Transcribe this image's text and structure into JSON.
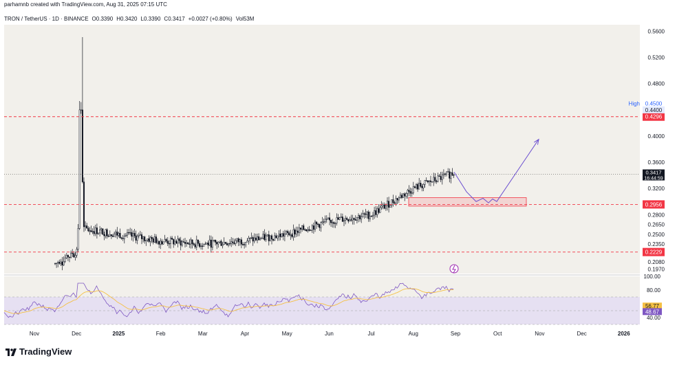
{
  "header": {
    "credit": "parhamnb created with TradingView.com, Aug 31, 2025 07:15 UTC",
    "symbol": "TRON / TetherUS · 1D · BINANCE",
    "open": "O0.3390",
    "high": "H0.3420",
    "low": "L0.3390",
    "close": "C0.3417",
    "change": "+0.0027 (+0.80%)",
    "volume": "Vol53M"
  },
  "footer": {
    "brand": "TradingView"
  },
  "colors": {
    "background": "#f2f0eb",
    "up": "#131722",
    "down": "#131722",
    "level_line": "#f23645",
    "projection": "#6b4fd0",
    "rsi_line": "#7e57c2",
    "rsi_ma": "#f5c043",
    "rsi_band": "#e6e0f2"
  },
  "chart_data": [
    {
      "type": "candlestick",
      "pane": "price",
      "ylim": [
        0.19,
        0.57
      ],
      "y_ticks": [
        "0.5600",
        "0.5200",
        "0.4800",
        "0.4400",
        "0.4000",
        "0.3600",
        "0.3200",
        "0.2800",
        "0.2650",
        "0.2500",
        "0.2350",
        "0.2080",
        "0.1970"
      ],
      "x_ticks": [
        "Nov",
        "Dec",
        "2025",
        "Feb",
        "Mar",
        "Apr",
        "May",
        "Jun",
        "Jul",
        "Aug",
        "Sep",
        "Oct",
        "Nov",
        "Dec",
        "2026"
      ],
      "months_series": {
        "labels": [
          "Nov",
          "Dec",
          "2025",
          "Feb",
          "Mar",
          "Apr",
          "May",
          "Jun",
          "Jul",
          "Aug",
          "Sep"
        ],
        "approx_close": [
          0.165,
          0.26,
          0.25,
          0.24,
          0.235,
          0.24,
          0.25,
          0.27,
          0.28,
          0.32,
          0.345
        ]
      },
      "last_price": "0.3417",
      "countdown": "16:44:59",
      "high_label": "High",
      "high_value": "0.4500",
      "price_axis_labels": [
        "0.4400",
        "0.2900",
        "0.3400"
      ],
      "levels": [
        {
          "value": "0.4296"
        },
        {
          "value": "0.2956"
        },
        {
          "value": "0.2229"
        }
      ],
      "zone": {
        "low": 0.293,
        "high": 0.306,
        "from": "Jul",
        "to": "Oct"
      },
      "projection_points": [
        [
          "Sep",
          0.345
        ],
        [
          "Sep",
          0.315
        ],
        [
          "Sep",
          0.3
        ],
        [
          "Oct",
          0.305
        ],
        [
          "Oct",
          0.298
        ],
        [
          "Oct",
          0.304
        ],
        [
          "Oct",
          0.3
        ],
        [
          "Nov",
          0.395
        ]
      ]
    },
    {
      "type": "line",
      "pane": "rsi",
      "ylim": [
        30,
        100
      ],
      "y_ticks": [
        "100.00",
        "80.00",
        "40.00"
      ],
      "bands": [
        70,
        50,
        30
      ],
      "series": [
        {
          "value_label": "56.77"
        },
        {
          "value_label": "48.67"
        }
      ]
    }
  ]
}
